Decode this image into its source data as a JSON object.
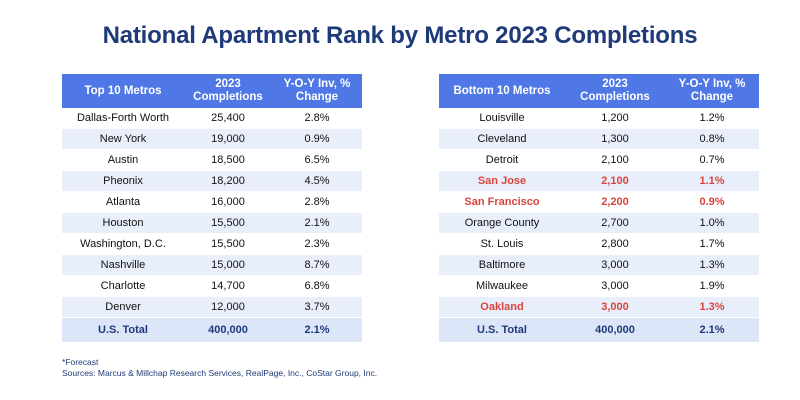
{
  "title": "National Apartment Rank by Metro 2023 Completions",
  "top": {
    "headers": [
      "Top 10 Metros",
      "2023 Completions",
      "Y-O-Y Inv, % Change"
    ],
    "rows": [
      {
        "metro": "Dallas-Forth Worth",
        "completions": "25,400",
        "change": "2.8%"
      },
      {
        "metro": "New York",
        "completions": "19,000",
        "change": "0.9%"
      },
      {
        "metro": "Austin",
        "completions": "18,500",
        "change": "6.5%"
      },
      {
        "metro": "Pheonix",
        "completions": "18,200",
        "change": "4.5%"
      },
      {
        "metro": "Atlanta",
        "completions": "16,000",
        "change": "2.8%"
      },
      {
        "metro": "Houston",
        "completions": "15,500",
        "change": "2.1%"
      },
      {
        "metro": "Washington, D.C.",
        "completions": "15,500",
        "change": "2.3%"
      },
      {
        "metro": "Nashville",
        "completions": "15,000",
        "change": "8.7%"
      },
      {
        "metro": "Charlotte",
        "completions": "14,700",
        "change": "6.8%"
      },
      {
        "metro": "Denver",
        "completions": "12,000",
        "change": "3.7%"
      }
    ],
    "total": {
      "metro": "U.S. Total",
      "completions": "400,000",
      "change": "2.1%"
    }
  },
  "bottom": {
    "headers": [
      "Bottom 10 Metros",
      "2023 Completions",
      "Y-O-Y Inv, % Change"
    ],
    "rows": [
      {
        "metro": "Louisville",
        "completions": "1,200",
        "change": "1.2%",
        "highlight": false
      },
      {
        "metro": "Cleveland",
        "completions": "1,300",
        "change": "0.8%",
        "highlight": false
      },
      {
        "metro": "Detroit",
        "completions": "2,100",
        "change": "0.7%",
        "highlight": false
      },
      {
        "metro": "San Jose",
        "completions": "2,100",
        "change": "1.1%",
        "highlight": true
      },
      {
        "metro": "San Francisco",
        "completions": "2,200",
        "change": "0.9%",
        "highlight": true
      },
      {
        "metro": "Orange County",
        "completions": "2,700",
        "change": "1.0%",
        "highlight": false
      },
      {
        "metro": "St. Louis",
        "completions": "2,800",
        "change": "1.7%",
        "highlight": false
      },
      {
        "metro": "Baltimore",
        "completions": "3,000",
        "change": "1.3%",
        "highlight": false
      },
      {
        "metro": "Milwaukee",
        "completions": "3,000",
        "change": "1.9%",
        "highlight": false
      },
      {
        "metro": "Oakland",
        "completions": "3,000",
        "change": "1.3%",
        "highlight": true
      }
    ],
    "total": {
      "metro": "U.S. Total",
      "completions": "400,000",
      "change": "2.1%"
    }
  },
  "colors": {
    "header_bg": "#4f78e6",
    "title": "#1f3a78",
    "highlight": "#d9453c",
    "stripe": "#e9eefb"
  },
  "footnote": {
    "line1": "*Forecast",
    "line2": "Sources: Marcus & Millchap Research Services, RealPage, Inc., CoStar Group, Inc."
  }
}
